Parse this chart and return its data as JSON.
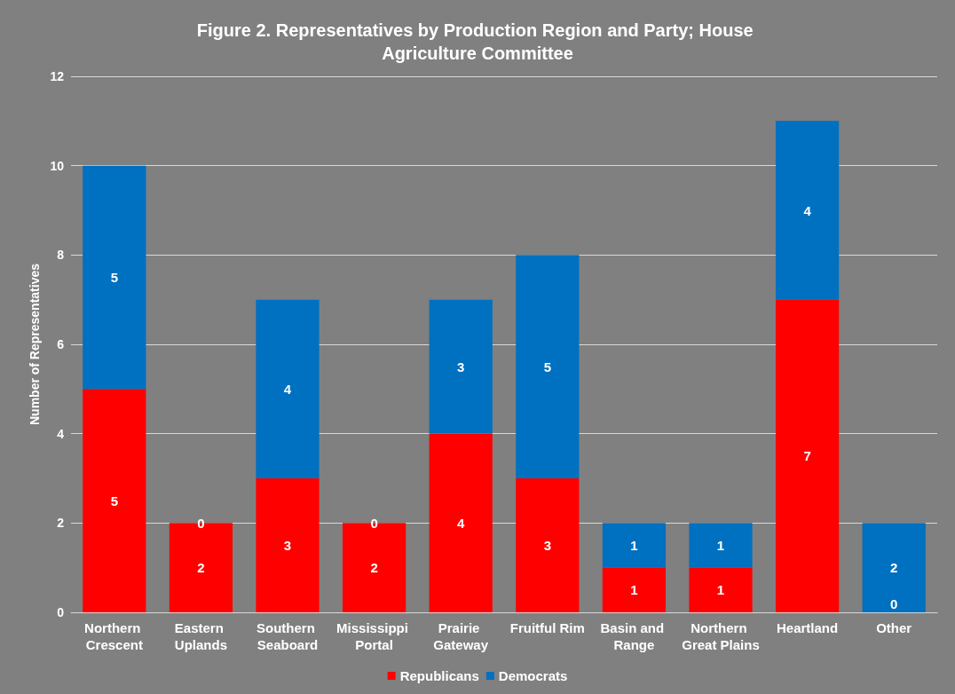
{
  "chart_data": {
    "type": "bar",
    "title": "Figure 2. Representatives by Production Region and Party; House Agriculture Committee",
    "ylabel": "Number of Representatives",
    "categories": [
      "Northern Crescent",
      "Eastern Uplands",
      "Southern Seaboard",
      "Mississippi Portal",
      "Prairie Gateway",
      "Fruitful Rim",
      "Basin and Range",
      "Northern Great Plains",
      "Heartland",
      "Other"
    ],
    "series": [
      {
        "name": "Republicans",
        "color": "#ff0000",
        "values": [
          5,
          2,
          3,
          2,
          4,
          3,
          1,
          1,
          7,
          0
        ],
        "value_labels": [
          "5",
          "2",
          "3",
          "2",
          "4",
          "3",
          "1",
          "1",
          "7",
          null
        ]
      },
      {
        "name": "Democrats",
        "color": "#0070c0",
        "values": [
          5,
          0,
          4,
          0,
          3,
          5,
          1,
          1,
          4,
          2
        ],
        "value_labels": [
          "5",
          "0",
          "4",
          "0",
          "3",
          "5",
          "1",
          "1",
          "4",
          "2"
        ]
      }
    ],
    "annotations": [
      {
        "text": "0",
        "x": "Other",
        "y": 0
      }
    ],
    "stacked": true,
    "ylim": [
      0,
      12
    ],
    "yticks": [
      0,
      2,
      4,
      6,
      8,
      10,
      12
    ],
    "grid": "y",
    "legend": "bottom"
  }
}
